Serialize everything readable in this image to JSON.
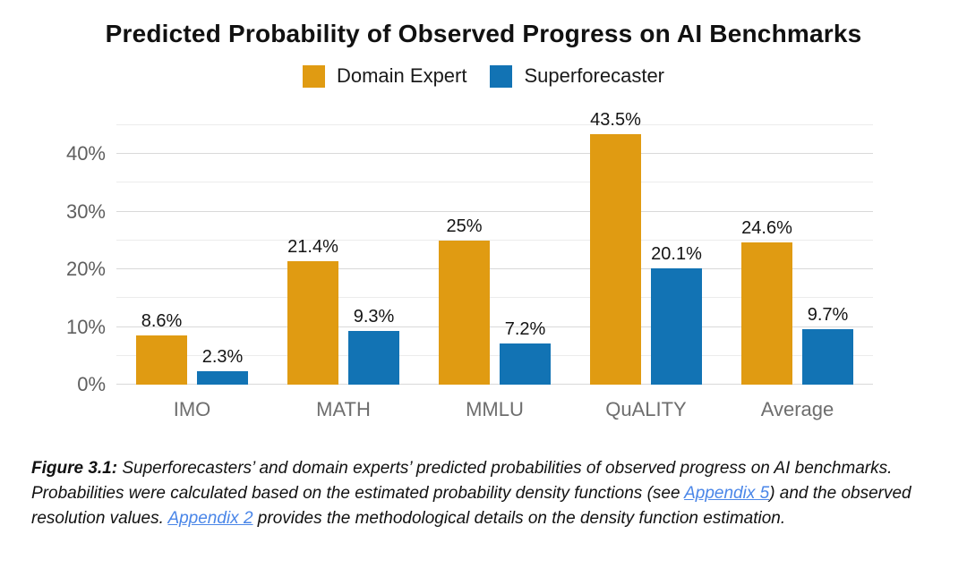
{
  "chart_data": {
    "type": "bar",
    "title": "Predicted Probability of Observed Progress on AI Benchmarks",
    "categories": [
      "IMO",
      "MATH",
      "MMLU",
      "QuALITY",
      "Average"
    ],
    "series": [
      {
        "name": "Domain Expert",
        "color": "#E09B12",
        "values": [
          8.6,
          21.4,
          25,
          43.5,
          24.6
        ],
        "value_labels": [
          "8.6%",
          "21.4%",
          "25%",
          "43.5%",
          "24.6%"
        ]
      },
      {
        "name": "Superforecaster",
        "color": "#1273B4",
        "values": [
          2.3,
          9.3,
          7.2,
          20.1,
          9.7
        ],
        "value_labels": [
          "2.3%",
          "9.3%",
          "7.2%",
          "20.1%",
          "9.7%"
        ]
      }
    ],
    "xlabel": "",
    "ylabel": "",
    "ylim": [
      0,
      45
    ],
    "grid_step": 5,
    "tick_step": 10,
    "yticks": [
      {
        "value": 0,
        "label": "0%"
      },
      {
        "value": 10,
        "label": "10%"
      },
      {
        "value": 20,
        "label": "20%"
      },
      {
        "value": 30,
        "label": "30%"
      },
      {
        "value": 40,
        "label": "40%"
      }
    ],
    "grid": "horizontal",
    "legend_position": "top-center"
  },
  "caption": {
    "figure_label": "Figure 3.1:",
    "text1": " Superforecasters’ and domain experts’ predicted probabilities of observed progress on AI benchmarks. Probabilities were calculated based on the estimated probability density functions (see ",
    "link1": "Appendix 5",
    "text2": ") and the observed resolution values. ",
    "link2": "Appendix 2",
    "text3": " provides the methodological details on the density function estimation.",
    "link_color": "#4A86E8"
  }
}
